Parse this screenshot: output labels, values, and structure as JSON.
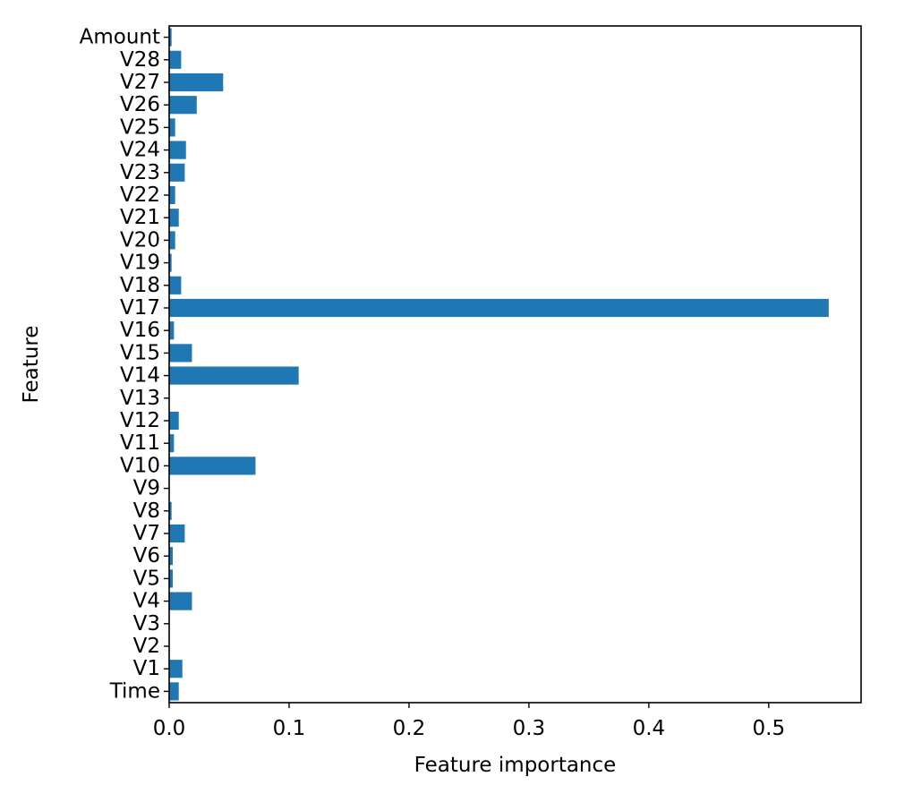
{
  "chart_data": {
    "type": "bar",
    "orientation": "horizontal",
    "xlabel": "Feature importance",
    "ylabel": "Feature",
    "xlim": [
      0,
      0.577
    ],
    "xticks": [
      0.0,
      0.1,
      0.2,
      0.3,
      0.4,
      0.5
    ],
    "xtick_labels": [
      "0.0",
      "0.1",
      "0.2",
      "0.3",
      "0.4",
      "0.5"
    ],
    "grid": false,
    "bar_color": "#1f77b4",
    "categories": [
      "Time",
      "V1",
      "V2",
      "V3",
      "V4",
      "V5",
      "V6",
      "V7",
      "V8",
      "V9",
      "V10",
      "V11",
      "V12",
      "V13",
      "V14",
      "V15",
      "V16",
      "V17",
      "V18",
      "V19",
      "V20",
      "V21",
      "V22",
      "V23",
      "V24",
      "V25",
      "V26",
      "V27",
      "V28",
      "Amount"
    ],
    "values": [
      0.008,
      0.011,
      0.0,
      0.0,
      0.019,
      0.003,
      0.003,
      0.013,
      0.002,
      0.0,
      0.072,
      0.004,
      0.008,
      0.0,
      0.108,
      0.019,
      0.004,
      0.55,
      0.01,
      0.002,
      0.005,
      0.008,
      0.005,
      0.013,
      0.014,
      0.005,
      0.023,
      0.045,
      0.01,
      0.002
    ]
  }
}
